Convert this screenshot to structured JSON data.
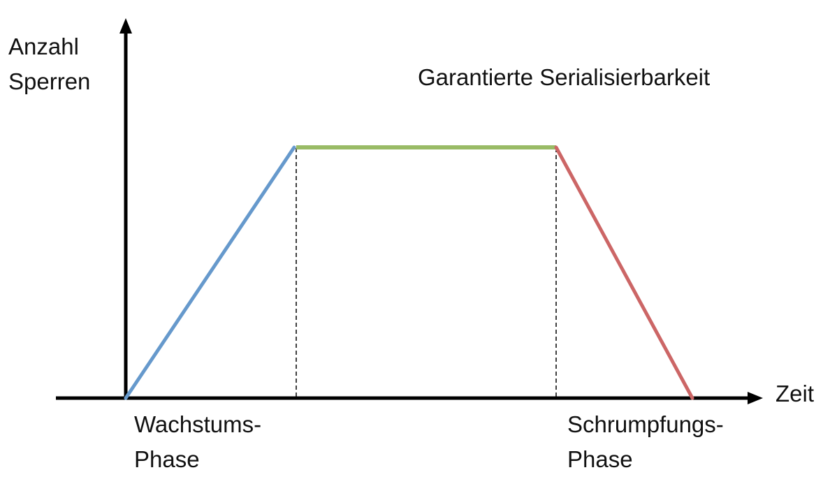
{
  "y_axis": {
    "label_line1": "Anzahl",
    "label_line2": "Sperren"
  },
  "x_axis": {
    "label": "Zeit"
  },
  "annotation": "Garantierte Serialisierbarkeit",
  "phases": [
    {
      "line1": "Wachstums-",
      "line2": "Phase",
      "color": "#6699cc"
    },
    {
      "line1": "Schrumpfungs-",
      "line2": "Phase",
      "color": "#cc6666"
    }
  ],
  "plateau_color": "#99bb66"
}
